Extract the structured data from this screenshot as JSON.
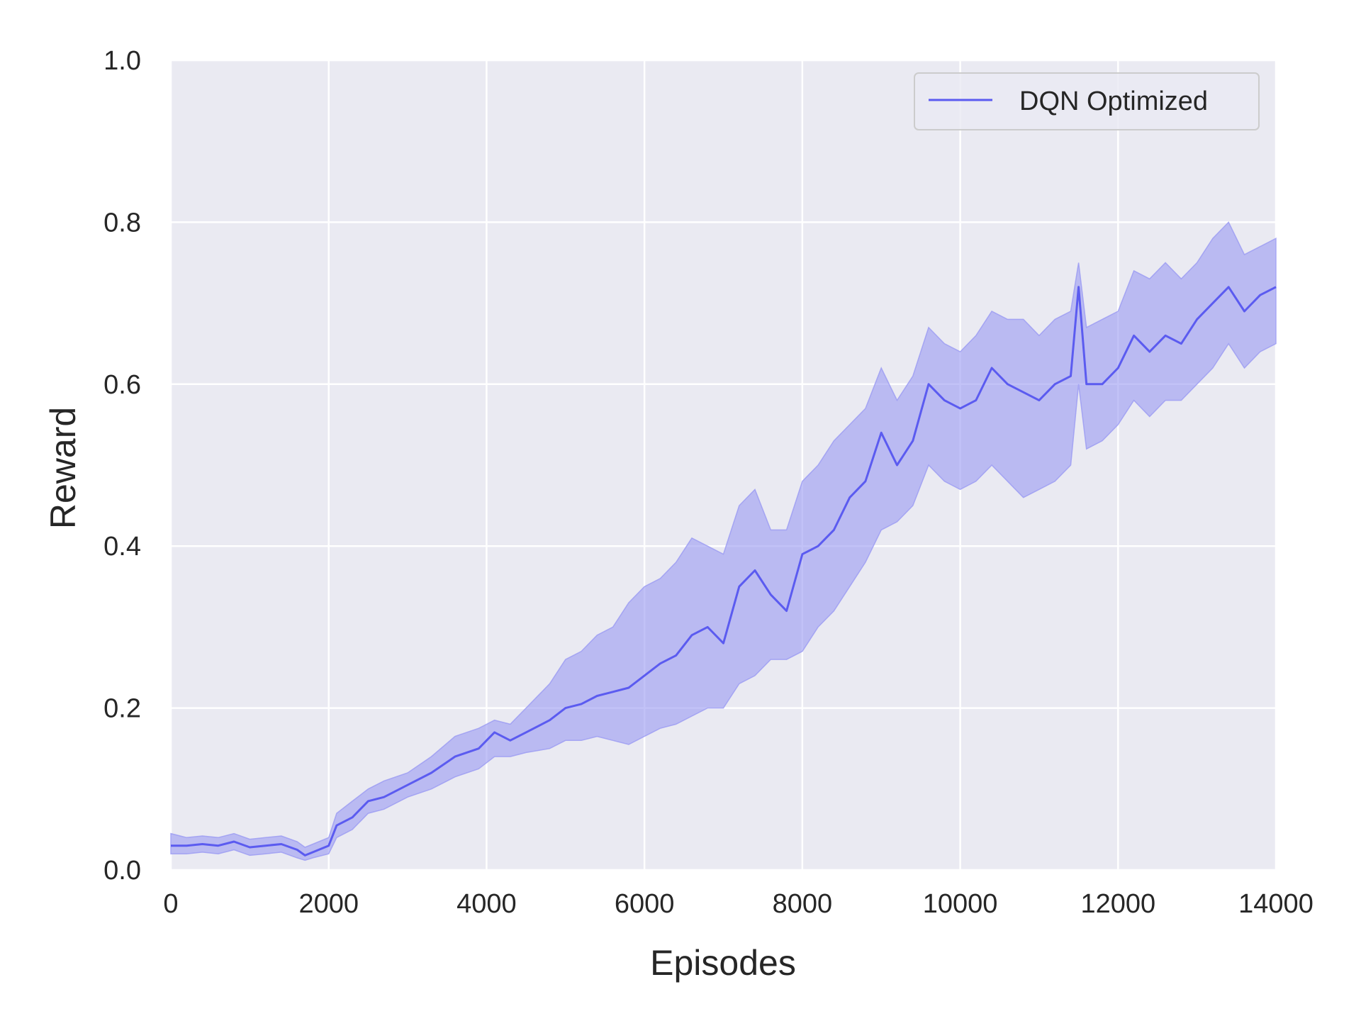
{
  "chart_data": {
    "type": "line",
    "title": "",
    "xlabel": "Episodes",
    "ylabel": "Reward",
    "xlim": [
      0,
      14000
    ],
    "ylim": [
      0.0,
      1.0
    ],
    "x_ticks": [
      0,
      2000,
      4000,
      6000,
      8000,
      10000,
      12000,
      14000
    ],
    "x_tick_labels": [
      "0",
      "2000",
      "4000",
      "6000",
      "8000",
      "10000",
      "12000",
      "14000"
    ],
    "y_ticks": [
      0.0,
      0.2,
      0.4,
      0.6,
      0.8,
      1.0
    ],
    "y_tick_labels": [
      "0.0",
      "0.2",
      "0.4",
      "0.6",
      "0.8",
      "1.0"
    ],
    "grid": true,
    "legend_position": "top-right",
    "colors": {
      "background": "#eaeaf2",
      "grid": "#ffffff",
      "line": "#5b5bf0",
      "band": "#9a9af2"
    },
    "series": [
      {
        "name": "DQN Optimized",
        "x": [
          0,
          200,
          400,
          600,
          800,
          1000,
          1200,
          1400,
          1600,
          1700,
          1800,
          2000,
          2100,
          2300,
          2500,
          2700,
          3000,
          3300,
          3600,
          3900,
          4100,
          4300,
          4500,
          4800,
          5000,
          5200,
          5400,
          5600,
          5800,
          6000,
          6200,
          6400,
          6600,
          6800,
          7000,
          7200,
          7400,
          7600,
          7800,
          8000,
          8200,
          8400,
          8600,
          8800,
          9000,
          9200,
          9400,
          9600,
          9800,
          10000,
          10200,
          10400,
          10600,
          10800,
          11000,
          11200,
          11400,
          11500,
          11600,
          11800,
          12000,
          12200,
          12400,
          12600,
          12800,
          13000,
          13200,
          13400,
          13600,
          13800,
          14000
        ],
        "y": [
          0.03,
          0.03,
          0.032,
          0.03,
          0.035,
          0.028,
          0.03,
          0.032,
          0.025,
          0.018,
          0.022,
          0.03,
          0.055,
          0.065,
          0.085,
          0.09,
          0.105,
          0.12,
          0.14,
          0.15,
          0.17,
          0.16,
          0.17,
          0.185,
          0.2,
          0.205,
          0.215,
          0.22,
          0.225,
          0.24,
          0.255,
          0.265,
          0.29,
          0.3,
          0.28,
          0.35,
          0.37,
          0.34,
          0.32,
          0.39,
          0.4,
          0.42,
          0.46,
          0.48,
          0.54,
          0.5,
          0.53,
          0.6,
          0.58,
          0.57,
          0.58,
          0.62,
          0.6,
          0.59,
          0.58,
          0.6,
          0.61,
          0.72,
          0.6,
          0.6,
          0.62,
          0.66,
          0.64,
          0.66,
          0.65,
          0.68,
          0.7,
          0.72,
          0.69,
          0.71,
          0.72
        ],
        "lower": [
          0.02,
          0.02,
          0.022,
          0.02,
          0.025,
          0.018,
          0.02,
          0.022,
          0.015,
          0.012,
          0.015,
          0.02,
          0.04,
          0.05,
          0.07,
          0.075,
          0.09,
          0.1,
          0.115,
          0.125,
          0.14,
          0.14,
          0.145,
          0.15,
          0.16,
          0.16,
          0.165,
          0.16,
          0.155,
          0.165,
          0.175,
          0.18,
          0.19,
          0.2,
          0.2,
          0.23,
          0.24,
          0.26,
          0.26,
          0.27,
          0.3,
          0.32,
          0.35,
          0.38,
          0.42,
          0.43,
          0.45,
          0.5,
          0.48,
          0.47,
          0.48,
          0.5,
          0.48,
          0.46,
          0.47,
          0.48,
          0.5,
          0.6,
          0.52,
          0.53,
          0.55,
          0.58,
          0.56,
          0.58,
          0.58,
          0.6,
          0.62,
          0.65,
          0.62,
          0.64,
          0.65
        ],
        "upper": [
          0.045,
          0.04,
          0.042,
          0.04,
          0.045,
          0.038,
          0.04,
          0.042,
          0.035,
          0.028,
          0.032,
          0.04,
          0.07,
          0.085,
          0.1,
          0.11,
          0.12,
          0.14,
          0.165,
          0.175,
          0.185,
          0.18,
          0.2,
          0.23,
          0.26,
          0.27,
          0.29,
          0.3,
          0.33,
          0.35,
          0.36,
          0.38,
          0.41,
          0.4,
          0.39,
          0.45,
          0.47,
          0.42,
          0.42,
          0.48,
          0.5,
          0.53,
          0.55,
          0.57,
          0.62,
          0.58,
          0.61,
          0.67,
          0.65,
          0.64,
          0.66,
          0.69,
          0.68,
          0.68,
          0.66,
          0.68,
          0.69,
          0.75,
          0.67,
          0.68,
          0.69,
          0.74,
          0.73,
          0.75,
          0.73,
          0.75,
          0.78,
          0.8,
          0.76,
          0.77,
          0.78
        ]
      }
    ]
  }
}
